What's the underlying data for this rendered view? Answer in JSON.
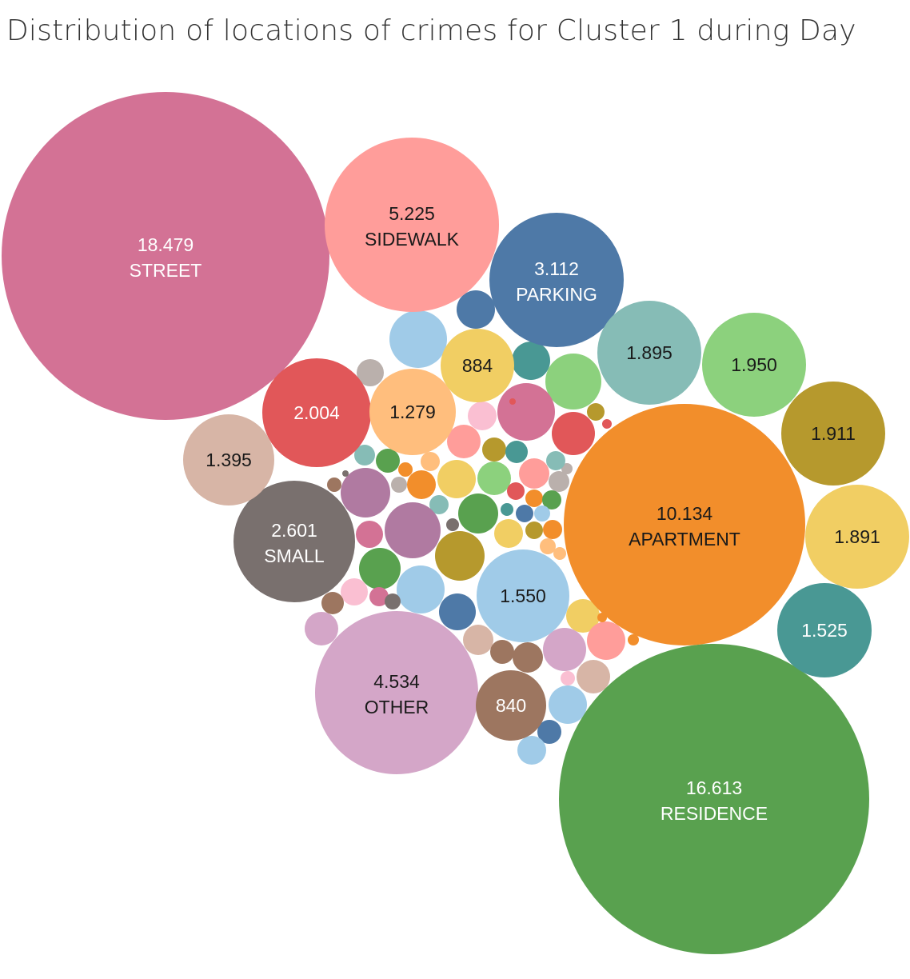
{
  "title": "Distribution of locations of crimes for Cluster 1 during Day",
  "chart_data": {
    "type": "bubble",
    "title": "Distribution of locations of crimes for Cluster 1 during Day",
    "bubbles": [
      {
        "label": "STREET",
        "value": 18479,
        "display": "18.479",
        "color": "#d37295",
        "text_color": "#ffffff"
      },
      {
        "label": "RESIDENCE",
        "value": 16613,
        "display": "16.613",
        "color": "#59a14f",
        "text_color": "#ffffff"
      },
      {
        "label": "APARTMENT",
        "value": 10134,
        "display": "10.134",
        "color": "#f28e2b",
        "text_color": "#1a1a1a"
      },
      {
        "label": "SIDEWALK",
        "value": 5225,
        "display": "5.225",
        "color": "#ff9d9a",
        "text_color": "#1a1a1a"
      },
      {
        "label": "OTHER",
        "value": 4534,
        "display": "4.534",
        "color": "#d4a6c8",
        "text_color": "#1a1a1a"
      },
      {
        "label": "PARKING",
        "value": 3112,
        "display": "3.112",
        "color": "#4e79a7",
        "text_color": "#ffffff"
      },
      {
        "label": "SMALL",
        "value": 2601,
        "display": "2.601",
        "color": "#79706e",
        "text_color": "#ffffff"
      },
      {
        "label": "",
        "value": 2004,
        "display": "2.004",
        "color": "#e15759",
        "text_color": "#ffffff"
      },
      {
        "label": "",
        "value": 1950,
        "display": "1.950",
        "color": "#8cd17d",
        "text_color": "#1a1a1a"
      },
      {
        "label": "",
        "value": 1911,
        "display": "1.911",
        "color": "#b6992d",
        "text_color": "#1a1a1a"
      },
      {
        "label": "",
        "value": 1895,
        "display": "1.895",
        "color": "#86bcb6",
        "text_color": "#1a1a1a"
      },
      {
        "label": "",
        "value": 1891,
        "display": "1.891",
        "color": "#f1ce63",
        "text_color": "#1a1a1a"
      },
      {
        "label": "",
        "value": 1550,
        "display": "1.550",
        "color": "#a0cbe8",
        "text_color": "#1a1a1a"
      },
      {
        "label": "",
        "value": 1525,
        "display": "1.525",
        "color": "#499894",
        "text_color": "#ffffff"
      },
      {
        "label": "",
        "value": 1395,
        "display": "1.395",
        "color": "#d7b5a6",
        "text_color": "#1a1a1a"
      },
      {
        "label": "",
        "value": 1279,
        "display": "1.279",
        "color": "#ffbe7d",
        "text_color": "#1a1a1a"
      },
      {
        "label": "",
        "value": 884,
        "display": "884",
        "color": "#f1ce63",
        "text_color": "#1a1a1a"
      },
      {
        "label": "",
        "value": 840,
        "display": "840",
        "color": "#9d7660",
        "text_color": "#ffffff"
      }
    ],
    "unlabeled_bubble_colors": [
      "#a0cbe8",
      "#4e79a7",
      "#499894",
      "#8cd17d",
      "#d37295",
      "#e15759",
      "#fabfd2",
      "#ff9d9a",
      "#b6992d",
      "#59a14f",
      "#f28e2b",
      "#bab0ac",
      "#b07aa1",
      "#79706e",
      "#9d7660",
      "#d4a6c8",
      "#86bcb6",
      "#d7b5a6",
      "#f1ce63",
      "#ffbe7d"
    ]
  }
}
